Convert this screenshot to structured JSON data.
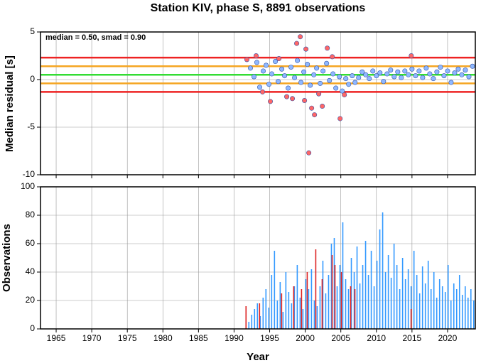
{
  "chart_data": [
    {
      "type": "scatter",
      "title": "Station KIV, phase S, 8891 observations",
      "annotation": "median = 0.50, smad = 0.90",
      "ylabel": "Median residual [s]",
      "xlim": [
        1962.8,
        2023.9
      ],
      "xticks": [
        1965,
        1970,
        1975,
        1980,
        1985,
        1990,
        1995,
        2000,
        2005,
        2010,
        2015,
        2020
      ],
      "ylim": [
        -10,
        5
      ],
      "yticks": [
        -10,
        -5,
        0,
        5
      ],
      "grid": true,
      "ref_lines": [
        {
          "value": 2.3,
          "color": "#ee2222"
        },
        {
          "value": 1.4,
          "color": "#f5a623"
        },
        {
          "value": 0.5,
          "color": "#33dd33"
        },
        {
          "value": -0.4,
          "color": "#f5a623"
        },
        {
          "value": -1.3,
          "color": "#ee2222"
        }
      ],
      "series": [
        {
          "color": "#8fb8ff",
          "x": [
            1992.3,
            1992.8,
            1993.2,
            1993.6,
            1994.1,
            1994.5,
            1994.9,
            1995.3,
            1995.8,
            1996.2,
            1996.7,
            1997.1,
            1997.6,
            1998.0,
            1998.5,
            1998.9,
            1999.4,
            1999.8,
            2000.3,
            2000.7,
            2001.2,
            2001.6,
            2002.1,
            2002.5,
            2003.0,
            2003.4,
            2003.9,
            2004.3,
            2004.8,
            2005.2,
            2005.7,
            2006.1,
            2006.6,
            2007.0,
            2007.5,
            2008.0,
            2008.5,
            2009.0,
            2009.5,
            2010.0,
            2010.5,
            2011.0,
            2011.5,
            2012.0,
            2012.5,
            2013.0,
            2013.5,
            2014.0,
            2014.5,
            2015.0,
            2015.5,
            2016.0,
            2016.5,
            2017.0,
            2017.5,
            2018.0,
            2018.5,
            2019.0,
            2019.5,
            2020.0,
            2020.5,
            2021.0,
            2021.5,
            2022.0,
            2022.5,
            2023.0,
            2023.5
          ],
          "values": [
            1.2,
            0.3,
            1.8,
            -0.8,
            0.9,
            1.5,
            -0.5,
            0.6,
            1.9,
            -0.2,
            1.1,
            0.4,
            -0.9,
            1.3,
            0.2,
            2.0,
            -0.3,
            0.8,
            1.6,
            -0.6,
            0.5,
            1.2,
            -0.4,
            0.9,
            1.7,
            -0.1,
            0.6,
            -0.9,
            0.3,
            -1.2,
            0.1,
            -0.5,
            0.4,
            -0.3,
            0.2,
            0.8,
            0.5,
            0.1,
            0.9,
            0.4,
            0.7,
            -0.2,
            0.6,
            1.0,
            0.3,
            0.8,
            0.2,
            0.9,
            0.5,
            1.1,
            0.4,
            0.9,
            0.2,
            1.2,
            0.6,
            0.1,
            0.8,
            1.3,
            0.4,
            0.9,
            -0.3,
            0.7,
            1.1,
            0.5,
            1.0,
            0.3,
            1.4
          ]
        },
        {
          "color": "#ff6666",
          "x": [
            1991.8,
            1993.1,
            1994.0,
            1995.1,
            1996.3,
            1997.4,
            1998.2,
            1998.8,
            1999.3,
            1999.9,
            2000.1,
            2000.5,
            2000.9,
            2001.3,
            2001.9,
            2002.4,
            2003.1,
            2003.8,
            2004.9,
            2005.5,
            2014.9
          ],
          "values": [
            2.1,
            2.5,
            -1.3,
            -2.3,
            2.2,
            -1.8,
            -2.0,
            3.8,
            4.5,
            -2.2,
            3.2,
            -7.7,
            -3.0,
            -3.7,
            -1.5,
            -2.8,
            3.3,
            2.4,
            -4.1,
            -1.6,
            2.5
          ]
        }
      ]
    },
    {
      "type": "bar",
      "xlabel": "Year",
      "ylabel": "Observations",
      "xlim": [
        1962.8,
        2023.9
      ],
      "xticks": [
        1965,
        1970,
        1975,
        1980,
        1985,
        1990,
        1995,
        2000,
        2005,
        2010,
        2015,
        2020
      ],
      "ylim": [
        0,
        100
      ],
      "yticks": [
        0,
        20,
        40,
        60,
        80,
        100
      ],
      "grid": true,
      "series": [
        {
          "color": "#3399ff",
          "x": [
            1992.0,
            1992.4,
            1992.8,
            1993.2,
            1993.6,
            1994.0,
            1994.4,
            1994.8,
            1995.2,
            1995.6,
            1996.0,
            1996.4,
            1996.8,
            1997.2,
            1997.6,
            1998.0,
            1998.4,
            1998.8,
            1999.2,
            1999.6,
            2000.0,
            2000.4,
            2000.8,
            2001.2,
            2001.6,
            2002.0,
            2002.4,
            2002.8,
            2003.2,
            2003.6,
            2004.0,
            2004.4,
            2004.8,
            2005.2,
            2005.6,
            2006.0,
            2006.4,
            2006.8,
            2007.2,
            2007.6,
            2008.0,
            2008.4,
            2008.8,
            2009.2,
            2009.6,
            2010.0,
            2010.4,
            2010.8,
            2011.2,
            2011.6,
            2012.0,
            2012.4,
            2012.8,
            2013.2,
            2013.6,
            2014.0,
            2014.4,
            2014.8,
            2015.2,
            2015.6,
            2016.0,
            2016.4,
            2016.8,
            2017.2,
            2017.6,
            2018.0,
            2018.4,
            2018.8,
            2019.2,
            2019.6,
            2020.0,
            2020.4,
            2020.8,
            2021.2,
            2021.6,
            2022.0,
            2022.4,
            2022.8,
            2023.2,
            2023.6
          ],
          "values": [
            5,
            10,
            14,
            18,
            9,
            22,
            28,
            15,
            38,
            55,
            20,
            33,
            12,
            40,
            26,
            18,
            30,
            45,
            22,
            14,
            35,
            28,
            42,
            20,
            16,
            30,
            48,
            25,
            38,
            60,
            64,
            30,
            45,
            75,
            35,
            28,
            50,
            40,
            58,
            32,
            45,
            62,
            38,
            55,
            30,
            48,
            70,
            82,
            40,
            52,
            36,
            60,
            45,
            28,
            50,
            35,
            42,
            30,
            55,
            38,
            25,
            44,
            32,
            48,
            28,
            40,
            22,
            35,
            30,
            26,
            45,
            20,
            32,
            28,
            38,
            24,
            30,
            22,
            28,
            20
          ]
        },
        {
          "color": "#dd2222",
          "x": [
            1991.6,
            1993.5,
            1996.6,
            1998.3,
            1999.4,
            2000.2,
            2001.4,
            2002.3,
            2003.7,
            2004.1,
            2005.0,
            2006.3,
            2006.9,
            2014.8
          ],
          "values": [
            16,
            18,
            25,
            30,
            28,
            40,
            56,
            35,
            52,
            45,
            40,
            30,
            28,
            14
          ]
        }
      ]
    }
  ]
}
